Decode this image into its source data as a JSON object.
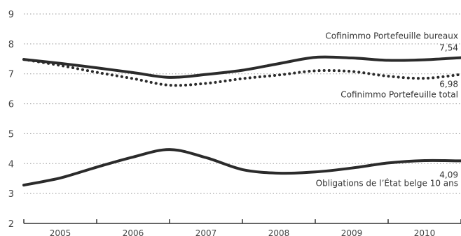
{
  "chart_data": {
    "type": "line",
    "x_ticks": [
      "2005",
      "2006",
      "2007",
      "2008",
      "2009",
      "2010"
    ],
    "y_ticks": [
      "2",
      "3",
      "4",
      "5",
      "6",
      "7",
      "8",
      "9"
    ],
    "ylim": [
      2,
      9
    ],
    "grid": true,
    "series": [
      {
        "name": "Cofinimmo Portefeuille bureaux",
        "style": "solid",
        "color": "#2b2b2b",
        "x": [
          2004.5,
          2005.0,
          2005.5,
          2006.0,
          2006.5,
          2007.0,
          2007.5,
          2008.0,
          2008.5,
          2009.0,
          2009.5,
          2010.0,
          2010.5
        ],
        "y": [
          7.48,
          7.35,
          7.2,
          7.04,
          6.88,
          6.98,
          7.12,
          7.34,
          7.55,
          7.53,
          7.45,
          7.47,
          7.54
        ]
      },
      {
        "name": "Cofinimmo Portefeuille total",
        "style": "dotted",
        "color": "#2b2b2b",
        "x": [
          2004.5,
          2005.0,
          2005.5,
          2006.0,
          2006.5,
          2007.0,
          2007.5,
          2008.0,
          2008.5,
          2009.0,
          2009.5,
          2010.0,
          2010.5
        ],
        "y": [
          7.48,
          7.28,
          7.05,
          6.84,
          6.62,
          6.68,
          6.84,
          6.96,
          7.1,
          7.08,
          6.92,
          6.85,
          6.98
        ]
      },
      {
        "name": "Obligations de l’État belge 10 ans",
        "style": "solid",
        "color": "#2b2b2b",
        "x": [
          2004.5,
          2005.0,
          2005.5,
          2006.0,
          2006.5,
          2007.0,
          2007.5,
          2008.0,
          2008.5,
          2009.0,
          2009.5,
          2010.0,
          2010.5
        ],
        "y": [
          3.28,
          3.52,
          3.88,
          4.22,
          4.47,
          4.2,
          3.8,
          3.68,
          3.72,
          3.85,
          4.02,
          4.1,
          4.09
        ]
      }
    ],
    "annotations": [
      {
        "series": 0,
        "label": "Cofinimmo Portefeuille bureaux",
        "value": "7,54"
      },
      {
        "series": 1,
        "label": "Cofinimmo Portefeuille total",
        "value": "6,98"
      },
      {
        "series": 2,
        "label": "Obligations de l’État belge 10 ans",
        "value": "4,09"
      }
    ]
  }
}
